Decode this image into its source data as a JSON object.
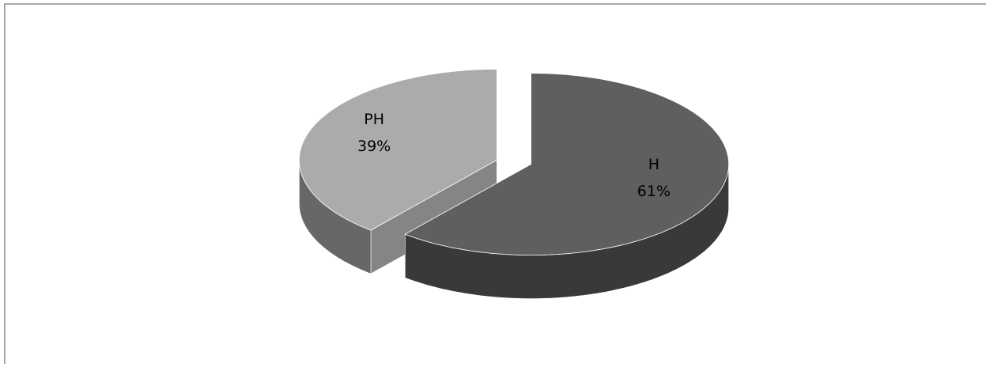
{
  "chart_data": {
    "type": "pie",
    "categories": [
      "H",
      "PH"
    ],
    "values": [
      61,
      39
    ],
    "value_labels": [
      "61%",
      "39%"
    ],
    "colors": [
      "#5f5f5f",
      "#ababab"
    ],
    "exploded": true,
    "three_d": true
  }
}
